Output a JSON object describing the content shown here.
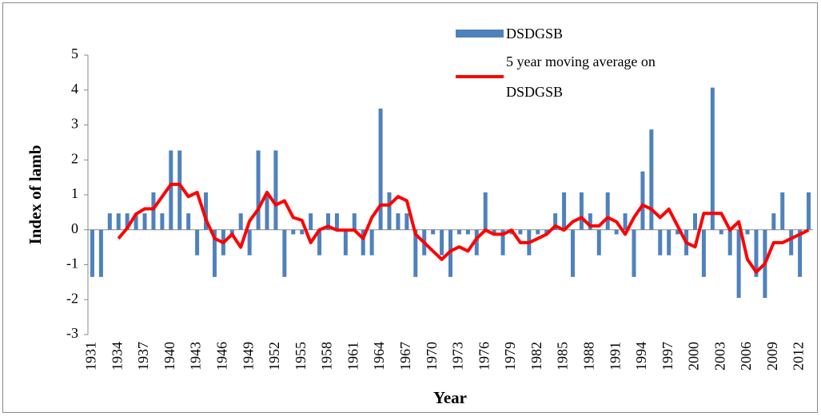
{
  "chart_data": {
    "type": "bar",
    "x_label": "Year",
    "y_label": "Index of lamb",
    "categories": [
      "1931",
      null,
      null,
      "1934",
      null,
      null,
      "1937",
      null,
      null,
      "1940",
      null,
      null,
      "1943",
      null,
      null,
      "1946",
      null,
      null,
      "1949",
      null,
      null,
      "1952",
      null,
      null,
      "1955",
      null,
      null,
      "1958",
      null,
      null,
      "1961",
      null,
      null,
      "1964",
      null,
      null,
      "1967",
      null,
      null,
      "1970",
      null,
      null,
      "1973",
      null,
      null,
      "1976",
      null,
      null,
      "1979",
      null,
      null,
      "1982",
      null,
      null,
      "1985",
      null,
      null,
      "1988",
      null,
      null,
      "1991",
      null,
      null,
      "1994",
      null,
      null,
      "1997",
      null,
      null,
      "2000",
      null,
      null,
      "2003",
      null,
      null,
      "2006",
      null,
      null,
      "2009",
      null,
      null,
      "2012",
      null
    ],
    "series": [
      {
        "name": "DSDGSB",
        "type": "bar",
        "color": "#4f81bd",
        "values": [
          -1.35,
          -1.35,
          0.47,
          0.47,
          0.47,
          0.47,
          0.47,
          1.07,
          0.47,
          2.27,
          2.27,
          0.47,
          -0.73,
          1.07,
          -1.35,
          -0.73,
          -0.13,
          0.47,
          -0.73,
          2.27,
          1.07,
          2.27,
          -1.35,
          -0.13,
          -0.13,
          0.47,
          -0.73,
          0.47,
          0.47,
          -0.73,
          0.47,
          -0.73,
          -0.73,
          3.47,
          1.07,
          0.47,
          0.47,
          -1.35,
          -0.73,
          -0.13,
          -0.73,
          -1.35,
          -0.13,
          -0.13,
          -0.73,
          1.07,
          -0.13,
          -0.73,
          -0.13,
          -0.13,
          -0.73,
          -0.13,
          -0.13,
          0.47,
          1.07,
          -1.35,
          1.07,
          0.47,
          -0.73,
          1.07,
          -0.13,
          0.47,
          -1.35,
          1.67,
          2.87,
          -0.73,
          -0.73,
          -0.13,
          -0.73,
          0.47,
          -1.35,
          4.07,
          -0.13,
          -0.73,
          -1.95,
          -0.13,
          -1.35,
          -1.95,
          0.47,
          1.07,
          -0.73,
          -1.35,
          1.07
        ]
      },
      {
        "name": "5 year moving average on DSDGSB",
        "type": "line",
        "color": "#ff0000",
        "values": [
          null,
          null,
          null,
          -0.25,
          0.05,
          0.45,
          0.6,
          0.6,
          0.95,
          1.3,
          1.3,
          0.95,
          1.07,
          0.3,
          -0.25,
          -0.37,
          -0.13,
          -0.5,
          0.25,
          0.59,
          1.07,
          0.71,
          0.83,
          0.35,
          0.27,
          -0.37,
          0.0,
          0.1,
          -0.01,
          -0.01,
          -0.01,
          -0.25,
          0.35,
          0.71,
          0.71,
          0.95,
          0.83,
          -0.13,
          -0.37,
          -0.61,
          -0.85,
          -0.61,
          -0.49,
          -0.61,
          -0.25,
          -0.01,
          -0.13,
          -0.13,
          -0.01,
          -0.37,
          -0.37,
          -0.25,
          -0.13,
          0.11,
          -0.01,
          0.23,
          0.35,
          0.11,
          0.11,
          0.35,
          0.23,
          -0.13,
          0.35,
          0.71,
          0.59,
          0.35,
          0.59,
          0.11,
          -0.37,
          -0.49,
          0.47,
          0.47,
          0.47,
          -0.01,
          0.23,
          -0.85,
          -1.21,
          -0.97,
          -0.37,
          -0.37,
          -0.25,
          -0.13,
          -0.01
        ]
      }
    ],
    "ylim": [
      -3,
      5
    ],
    "yticks": [
      -3,
      -2,
      -1,
      0,
      1,
      2,
      3,
      4,
      5
    ],
    "grid": false
  }
}
